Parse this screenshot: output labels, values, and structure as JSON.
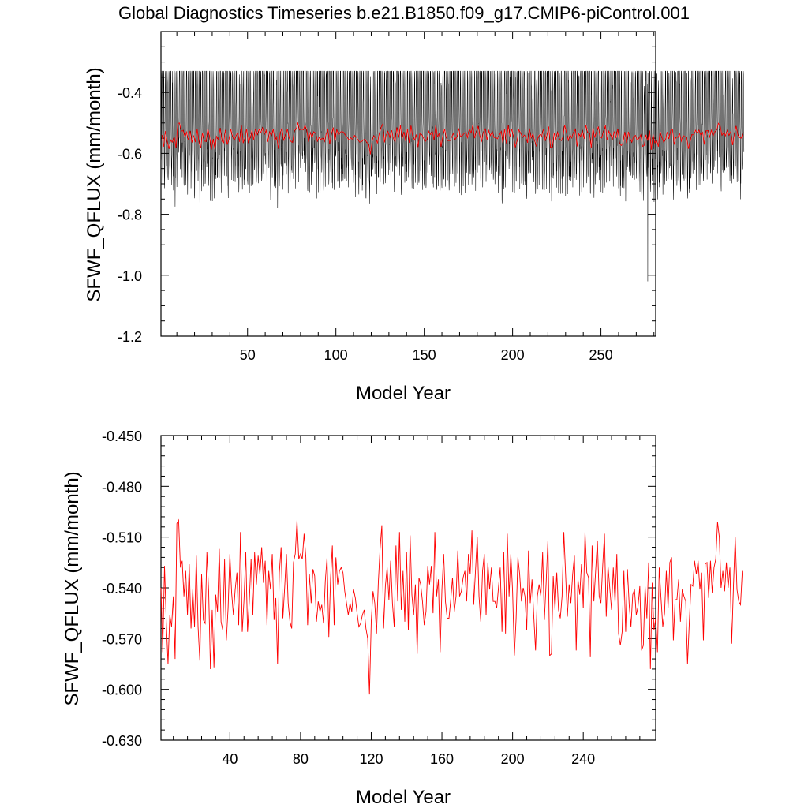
{
  "title": "Global Diagnostics Timeseries b.e21.B1850.f09_g17.CMIP6-piControl.001",
  "colors": {
    "monthly": "#000000",
    "annual": "#ff0000",
    "axis": "#000000",
    "background": "#ffffff"
  },
  "chart_data": [
    {
      "type": "line",
      "xlabel": "Model Year",
      "ylabel": "SFWF_QFLUX (mm/month)",
      "xlim": [
        1,
        281
      ],
      "ylim": [
        -1.2,
        -0.2
      ],
      "xticks": [
        50,
        100,
        150,
        200,
        250
      ],
      "xtick_labels": [
        "50",
        "100",
        "150",
        "200",
        "250"
      ],
      "yticks": [
        -1.2,
        -1.0,
        -0.8,
        -0.6,
        -0.4
      ],
      "ytick_labels": [
        "-1.2",
        "-1.0",
        "-0.8",
        "-0.6",
        "-0.4"
      ],
      "series": [
        {
          "name": "monthly",
          "color": "#000000",
          "resolution": "monthly",
          "description_values": {
            "typical_max": -0.38,
            "typical_min": -0.78,
            "extreme_max": -0.33,
            "extreme_min": -1.02,
            "extreme_min_year": 276
          }
        },
        {
          "name": "annual",
          "color": "#ff0000",
          "resolution": "annual"
        }
      ]
    },
    {
      "type": "line",
      "xlabel": "Model Year",
      "ylabel": "SFWF_QFLUX (mm/month)",
      "xlim": [
        1,
        281
      ],
      "ylim": [
        -0.63,
        -0.45
      ],
      "xticks": [
        40,
        80,
        120,
        160,
        200,
        240
      ],
      "xtick_labels": [
        "40",
        "80",
        "120",
        "160",
        "200",
        "240"
      ],
      "yticks": [
        -0.63,
        -0.6,
        -0.57,
        -0.54,
        -0.51,
        -0.48,
        -0.45
      ],
      "ytick_labels": [
        "-0.630",
        "-0.600",
        "-0.570",
        "-0.540",
        "-0.510",
        "-0.480",
        "-0.450"
      ],
      "series": [
        {
          "name": "annual",
          "color": "#ff0000",
          "x_start": 1,
          "values": [
            -0.54,
            -0.578,
            -0.527,
            -0.56,
            -0.585,
            -0.556,
            -0.563,
            -0.545,
            -0.582,
            -0.502,
            -0.5,
            -0.528,
            -0.524,
            -0.545,
            -0.53,
            -0.556,
            -0.526,
            -0.564,
            -0.541,
            -0.563,
            -0.521,
            -0.563,
            -0.583,
            -0.532,
            -0.559,
            -0.561,
            -0.519,
            -0.542,
            -0.588,
            -0.553,
            -0.587,
            -0.544,
            -0.554,
            -0.517,
            -0.56,
            -0.565,
            -0.523,
            -0.571,
            -0.552,
            -0.52,
            -0.543,
            -0.556,
            -0.541,
            -0.531,
            -0.562,
            -0.507,
            -0.566,
            -0.547,
            -0.519,
            -0.566,
            -0.548,
            -0.523,
            -0.556,
            -0.519,
            -0.538,
            -0.521,
            -0.532,
            -0.516,
            -0.537,
            -0.524,
            -0.562,
            -0.53,
            -0.541,
            -0.52,
            -0.559,
            -0.546,
            -0.585,
            -0.531,
            -0.516,
            -0.558,
            -0.54,
            -0.52,
            -0.549,
            -0.56,
            -0.564,
            -0.525,
            -0.52,
            -0.5,
            -0.523,
            -0.52,
            -0.523,
            -0.508,
            -0.522,
            -0.562,
            -0.532,
            -0.549,
            -0.529,
            -0.533,
            -0.56,
            -0.548,
            -0.554,
            -0.55,
            -0.561,
            -0.536,
            -0.522,
            -0.569,
            -0.534,
            -0.515,
            -0.562,
            -0.522,
            -0.538,
            -0.53,
            -0.528,
            -0.531,
            -0.542,
            -0.549,
            -0.556,
            -0.549,
            -0.554,
            -0.541,
            -0.546,
            -0.555,
            -0.563,
            -0.561,
            -0.556,
            -0.553,
            -0.564,
            -0.57,
            -0.603,
            -0.56,
            -0.542,
            -0.549,
            -0.567,
            -0.537,
            -0.517,
            -0.503,
            -0.564,
            -0.539,
            -0.528,
            -0.547,
            -0.524,
            -0.549,
            -0.563,
            -0.515,
            -0.548,
            -0.507,
            -0.553,
            -0.53,
            -0.56,
            -0.519,
            -0.565,
            -0.509,
            -0.544,
            -0.556,
            -0.538,
            -0.579,
            -0.534,
            -0.538,
            -0.548,
            -0.562,
            -0.554,
            -0.527,
            -0.538,
            -0.527,
            -0.555,
            -0.507,
            -0.545,
            -0.535,
            -0.578,
            -0.541,
            -0.52,
            -0.548,
            -0.558,
            -0.558,
            -0.547,
            -0.534,
            -0.554,
            -0.545,
            -0.518,
            -0.545,
            -0.542,
            -0.534,
            -0.53,
            -0.548,
            -0.52,
            -0.532,
            -0.506,
            -0.55,
            -0.53,
            -0.51,
            -0.545,
            -0.56,
            -0.53,
            -0.52,
            -0.556,
            -0.525,
            -0.541,
            -0.528,
            -0.548,
            -0.548,
            -0.552,
            -0.54,
            -0.528,
            -0.566,
            -0.519,
            -0.567,
            -0.508,
            -0.545,
            -0.52,
            -0.542,
            -0.58,
            -0.558,
            -0.522,
            -0.532,
            -0.548,
            -0.54,
            -0.545,
            -0.565,
            -0.518,
            -0.549,
            -0.535,
            -0.557,
            -0.577,
            -0.545,
            -0.538,
            -0.545,
            -0.519,
            -0.559,
            -0.537,
            -0.512,
            -0.58,
            -0.579,
            -0.533,
            -0.553,
            -0.531,
            -0.553,
            -0.558,
            -0.545,
            -0.507,
            -0.532,
            -0.557,
            -0.538,
            -0.549,
            -0.532,
            -0.521,
            -0.577,
            -0.535,
            -0.544,
            -0.526,
            -0.552,
            -0.507,
            -0.531,
            -0.534,
            -0.581,
            -0.515,
            -0.548,
            -0.53,
            -0.512,
            -0.545,
            -0.549,
            -0.527,
            -0.508,
            -0.557,
            -0.527,
            -0.54,
            -0.553,
            -0.528,
            -0.549,
            -0.52,
            -0.567,
            -0.574,
            -0.566,
            -0.53,
            -0.566,
            -0.529,
            -0.55,
            -0.563,
            -0.544,
            -0.541,
            -0.556,
            -0.551,
            -0.539,
            -0.577,
            -0.574,
            -0.539,
            -0.558,
            -0.525,
            -0.588,
            -0.537,
            -0.565,
            -0.558,
            -0.578,
            -0.528,
            -0.546,
            -0.563,
            -0.555,
            -0.53,
            -0.552,
            -0.525,
            -0.522,
            -0.571,
            -0.547,
            -0.547,
            -0.535,
            -0.56,
            -0.541,
            -0.545,
            -0.548,
            -0.585,
            -0.561,
            -0.538,
            -0.539,
            -0.524,
            -0.532,
            -0.524,
            -0.541,
            -0.531,
            -0.571,
            -0.526,
            -0.525,
            -0.546,
            -0.524,
            -0.543,
            -0.528,
            -0.523,
            -0.501,
            -0.51,
            -0.54,
            -0.53,
            -0.542,
            -0.525,
            -0.54,
            -0.528,
            -0.573,
            -0.539,
            -0.51,
            -0.541,
            -0.548,
            -0.55,
            -0.53
          ]
        }
      ]
    }
  ]
}
